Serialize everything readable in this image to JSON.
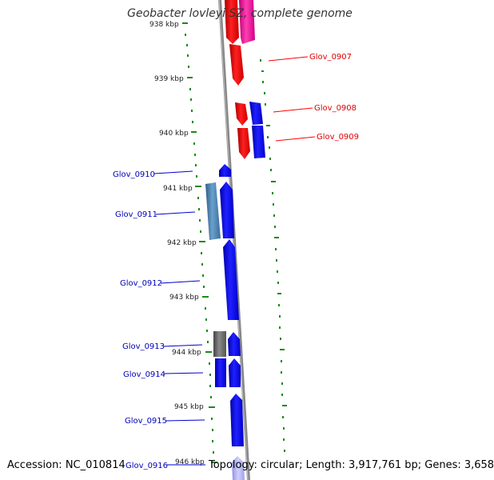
{
  "title": "Geobacter lovleyi SZ, complete genome",
  "accession": "Accession: NC_010814",
  "summary": "Topology: circular; Length: 3,917,761 bp; Genes: 3,658",
  "colors": {
    "forward_strand": "#ff0000",
    "reverse_strand": "#0000ee",
    "backbone": "#888888",
    "tick": "#1a8a1a"
  },
  "position_ticks": [
    "938 kbp",
    "939 kbp",
    "940 kbp",
    "941 kbp",
    "942 kbp",
    "943 kbp",
    "944 kbp",
    "945 kbp",
    "946 kbp"
  ],
  "gene_labels_forward": [
    "Glov_0907",
    "Glov_0908",
    "Glov_0909"
  ],
  "gene_labels_reverse": [
    "Glov_0910",
    "Glov_0911",
    "Glov_0912",
    "Glov_0913",
    "Glov_0914",
    "Glov_0915",
    "Glov_0916"
  ]
}
